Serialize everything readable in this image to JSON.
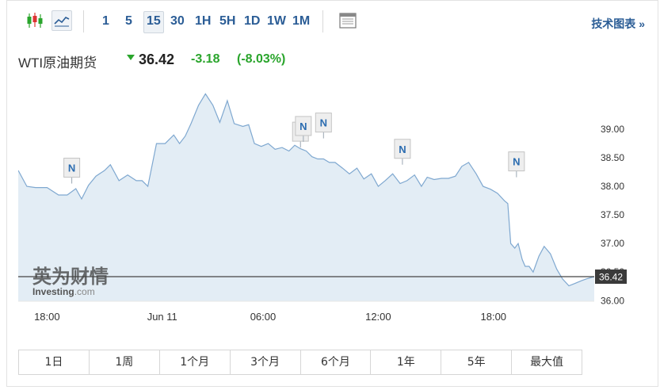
{
  "toolbar": {
    "timeframes": [
      "1",
      "5",
      "15",
      "30",
      "1H",
      "5H",
      "1D",
      "1W",
      "1M"
    ],
    "active_timeframe": "15",
    "tech_chart_link": "技术图表 »"
  },
  "quote": {
    "name": "WTI原油期货",
    "price": "36.42",
    "change": "-3.18",
    "change_pct": "(-8.03%)",
    "direction": "down",
    "change_color": "#2aa52c"
  },
  "watermark": {
    "brand_cn": "英为财情",
    "brand_en": "Investing",
    "brand_suffix": ".com"
  },
  "range_buttons": [
    "1日",
    "1周",
    "1个月",
    "3个月",
    "6个月",
    "1年",
    "5年",
    "最大值"
  ],
  "chart_data": {
    "type": "area",
    "x_ticks": [
      "18:00",
      "Jun 11",
      "06:00",
      "12:00",
      "18:00"
    ],
    "y_ticks": [
      "39.00",
      "38.50",
      "38.00",
      "37.50",
      "37.00",
      "36.50",
      "36.00"
    ],
    "ylim": [
      35.99,
      40.0
    ],
    "xlim": [
      0,
      100
    ],
    "grid": false,
    "current_price_label": "36.42",
    "current_price": 36.42,
    "line_color": "#7fa8d0",
    "fill_color": "#e3edf5",
    "series": [
      {
        "x": [
          0,
          1.5,
          3,
          5,
          7,
          8.5,
          10,
          11,
          12.2,
          13.5,
          15,
          16,
          17.5,
          19,
          20.5,
          21.5,
          22.5,
          24,
          25.5,
          27,
          28,
          29,
          30,
          31.3,
          32.5,
          33.8,
          35,
          36.3,
          37.5,
          39,
          40,
          41,
          42.2,
          43.4,
          44.6,
          45.8,
          47,
          48,
          49,
          50,
          51,
          52,
          53,
          54,
          55,
          56.3,
          57.5,
          58.8,
          60,
          61.3,
          62.5,
          63.7,
          65,
          66.3,
          67.5,
          68.8,
          70,
          71,
          72.2,
          73.5,
          74.7,
          75.9,
          77,
          78.2,
          79.5,
          80.7,
          82,
          83.2,
          84.4,
          85,
          85.5,
          86.2,
          86.8,
          87.5,
          88,
          88.7,
          89.4,
          90.4,
          91.3,
          92.4,
          93.5,
          94.5,
          95.6,
          96.6,
          97.8,
          98.6,
          100
        ],
        "y": [
          38.28,
          38.0,
          37.98,
          37.98,
          37.85,
          37.85,
          37.96,
          37.78,
          38.02,
          38.18,
          38.28,
          38.38,
          38.1,
          38.2,
          38.1,
          38.1,
          38.0,
          38.75,
          38.75,
          38.9,
          38.75,
          38.88,
          39.1,
          39.42,
          39.62,
          39.42,
          39.12,
          39.5,
          39.1,
          39.05,
          39.08,
          38.75,
          38.7,
          38.75,
          38.65,
          38.68,
          38.62,
          38.72,
          38.66,
          38.62,
          38.52,
          38.48,
          38.48,
          38.42,
          38.42,
          38.32,
          38.22,
          38.32,
          38.13,
          38.22,
          38.0,
          38.1,
          38.22,
          38.05,
          38.1,
          38.2,
          38.0,
          38.16,
          38.12,
          38.14,
          38.14,
          38.18,
          38.35,
          38.42,
          38.22,
          38.0,
          37.95,
          37.88,
          37.75,
          37.7,
          37.0,
          36.92,
          37.0,
          36.72,
          36.6,
          36.6,
          36.5,
          36.78,
          36.95,
          36.82,
          36.55,
          36.38,
          36.26,
          36.3,
          36.35,
          36.38,
          36.42
        ]
      }
    ],
    "news_markers": [
      {
        "label": "N",
        "x": 9.3,
        "y": 38.05
      },
      {
        "label": "N",
        "x": 49.0,
        "y": 38.68
      },
      {
        "label": "N",
        "x": 49.5,
        "y": 38.78
      },
      {
        "label": "N",
        "x": 53.0,
        "y": 38.84
      },
      {
        "label": "N",
        "x": 66.7,
        "y": 38.38
      },
      {
        "label": "N",
        "x": 86.5,
        "y": 38.16
      }
    ]
  }
}
